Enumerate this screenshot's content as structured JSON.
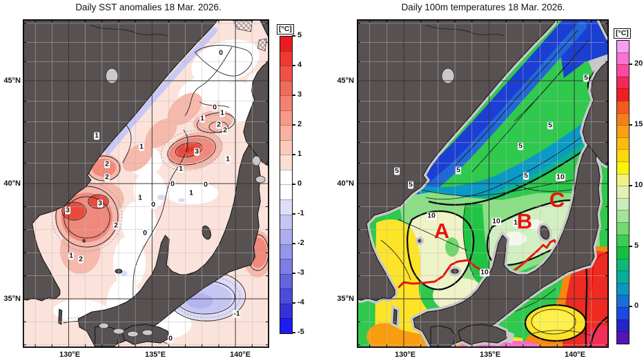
{
  "left": {
    "title": "Daily SST anomalies 18 Mar. 2026.",
    "lat_ticks": [
      "45°N",
      "40°N",
      "35°N"
    ],
    "lon_ticks": [
      "130°E",
      "135°E",
      "140°E"
    ],
    "colorbar": {
      "unit": "[°C]",
      "tick_labels": [
        "5",
        "4",
        "3",
        "2",
        "1",
        "0",
        "-1",
        "-2",
        "-3",
        "-4",
        "-5"
      ],
      "range": [
        5,
        -5
      ],
      "segment_colors": [
        "#ec1b23",
        "#ee3a33",
        "#f05146",
        "#f26a5c",
        "#f48272",
        "#f69a89",
        "#f8b2a1",
        "#facaba",
        "#fcdfd4",
        "#ffffff",
        "#ffffff",
        "#dedef9",
        "#c6c6f4",
        "#aeaeef",
        "#9595ea",
        "#7d7de5",
        "#6464e0",
        "#4c4cdb",
        "#3434d6",
        "#1c1cf2"
      ]
    },
    "contour_labels": [
      "0",
      "0",
      "1",
      "1",
      "2",
      "2",
      "1",
      "1",
      "3",
      "1",
      "2",
      "2",
      "1",
      "0",
      "0",
      "1",
      "1",
      "0",
      "3",
      "3",
      "2",
      "0",
      "1",
      "2",
      "-1",
      "0"
    ]
  },
  "right": {
    "title": "Daily 100m temperatures 18 Mar. 2026.",
    "lat_ticks": [
      "45°N",
      "40°N",
      "35°N"
    ],
    "lon_ticks": [
      "130°E",
      "135°E",
      "140°E"
    ],
    "colorbar": {
      "unit": "[°C]",
      "tick_labels": [
        "20",
        "15",
        "10",
        "5",
        "0"
      ],
      "range": [
        22,
        -3
      ],
      "segment_colors": [
        "#f79ef3",
        "#f973cf",
        "#fa4aa0",
        "#f22858",
        "#ee1e24",
        "#f25a1e",
        "#f67e1a",
        "#f9a012",
        "#fbbc0e",
        "#fdd80a",
        "#fef208",
        "#f2f283",
        "#e2f0b4",
        "#cdecbb",
        "#a5e395",
        "#74d972",
        "#3bcd52",
        "#14c13e",
        "#0fb876",
        "#0aac9e",
        "#0b97c2",
        "#1571d8",
        "#1d49e0",
        "#2127c9",
        "#5316b2"
      ]
    },
    "contour_labels": [
      "5",
      "5",
      "5",
      "5",
      "5",
      "10",
      "5",
      "5",
      "10",
      "10",
      "10",
      "10"
    ],
    "region_labels": [
      "A",
      "B",
      "C"
    ],
    "front_line_color": "#e8140c"
  },
  "colors": {
    "land": "#575151",
    "no_data_gray": "#c9c9c9",
    "grid_minor": "#c0b8b8",
    "grid_major": "#3b3434"
  }
}
